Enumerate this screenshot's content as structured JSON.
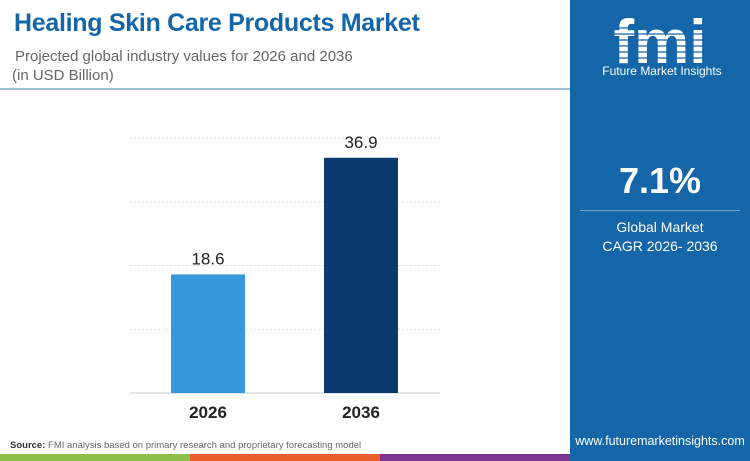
{
  "header": {
    "title": "Healing Skin Care Products Market",
    "subtitle": "Projected global industry values for 2026 and 2036",
    "unit": "(in USD Billion)"
  },
  "sidebar": {
    "logo_text": "Future Market Insights",
    "cagr_value": "7.1%",
    "cagr_label_1": "Global Market",
    "cagr_label_2": "CAGR 2026- 2036",
    "website": "www.futuremarketinsights.com"
  },
  "footer": {
    "source_label": "Source:",
    "source_text": "FMI analysis based on primary research and proprietary forecasting model"
  },
  "colors": {
    "brand": "#1466a8",
    "bar_2026": "#3797d9",
    "bar_2036": "#0d3a6e",
    "stripes": [
      "#8cc04a",
      "#e85d2a",
      "#7b3590",
      "#1466a8"
    ]
  },
  "chart_data": {
    "type": "bar",
    "categories": [
      "2026",
      "2036"
    ],
    "values": [
      18.6,
      36.9
    ],
    "data_labels": [
      "18.6",
      "36.9"
    ],
    "ylim": [
      0,
      40
    ],
    "grid": true,
    "xlabel": "",
    "ylabel": ""
  }
}
